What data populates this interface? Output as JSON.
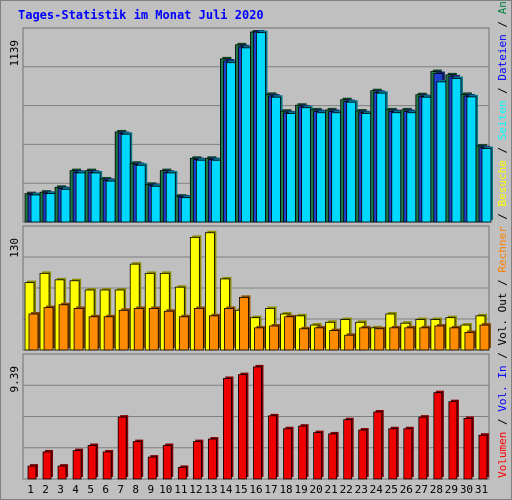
{
  "title": "Tages-Statistik im Monat Juli 2020",
  "right_axis": [
    {
      "text": "Volumen",
      "color": "#ff0000"
    },
    {
      "text": " / ",
      "color": "#000000"
    },
    {
      "text": "Vol. In",
      "color": "#0000ff"
    },
    {
      "text": " / ",
      "color": "#000000"
    },
    {
      "text": "Vol. Out",
      "color": "#000000"
    },
    {
      "text": " / ",
      "color": "#000000"
    },
    {
      "text": "Rechner",
      "color": "#ff8000"
    },
    {
      "text": " / ",
      "color": "#000000"
    },
    {
      "text": "Besuche",
      "color": "#ffff00"
    },
    {
      "text": " / ",
      "color": "#000000"
    },
    {
      "text": "Seiten",
      "color": "#00ffff"
    },
    {
      "text": " / ",
      "color": "#000000"
    },
    {
      "text": "Dateien",
      "color": "#0000ff"
    },
    {
      "text": " / ",
      "color": "#000000"
    },
    {
      "text": "Anfragen",
      "color": "#008040"
    }
  ],
  "colors": {
    "anfragen": "#1f7a4a",
    "dateien": "#1e40d0",
    "seiten": "#00d8ff",
    "besuche": "#ffff00",
    "rechner": "#ff8c00",
    "volumen": "#ee0000",
    "weekend_label": "#2e8b57",
    "weekday_label": "#000000"
  },
  "chart_data": [
    {
      "type": "bar",
      "name": "hits",
      "y_max_label": "1139",
      "ylim": [
        0,
        1139
      ],
      "categories": [
        "1",
        "2",
        "3",
        "4",
        "5",
        "6",
        "7",
        "8",
        "9",
        "10",
        "11",
        "12",
        "13",
        "14",
        "15",
        "16",
        "17",
        "18",
        "19",
        "20",
        "21",
        "22",
        "23",
        "24",
        "25",
        "26",
        "27",
        "28",
        "29",
        "30",
        "31"
      ],
      "series": [
        {
          "name": "Anfragen",
          "values": [
            170,
            179,
            208,
            308,
            308,
            258,
            540,
            352,
            226,
            308,
            155,
            382,
            382,
            978,
            1062,
            1139,
            765,
            664,
            700,
            672,
            672,
            733,
            665,
            787,
            672,
            672,
            763,
            902,
            882,
            765,
            455
          ]
        },
        {
          "name": "Dateien",
          "values": [
            164,
            172,
            200,
            298,
            298,
            250,
            530,
            344,
            218,
            298,
            150,
            374,
            374,
            965,
            1050,
            1139,
            755,
            654,
            690,
            662,
            662,
            722,
            655,
            777,
            662,
            662,
            752,
            890,
            870,
            755,
            445
          ]
        },
        {
          "name": "Seiten",
          "values": [
            162,
            170,
            196,
            294,
            294,
            245,
            526,
            340,
            214,
            294,
            146,
            370,
            370,
            955,
            1044,
            1135,
            748,
            650,
            685,
            655,
            655,
            718,
            650,
            772,
            655,
            655,
            748,
            840,
            860,
            750,
            440
          ]
        }
      ]
    },
    {
      "type": "bar",
      "name": "visits",
      "y_max_label": "130",
      "ylim": [
        0,
        130
      ],
      "categories": [
        "1",
        "2",
        "3",
        "4",
        "5",
        "6",
        "7",
        "8",
        "9",
        "10",
        "11",
        "12",
        "13",
        "14",
        "15",
        "16",
        "17",
        "18",
        "19",
        "20",
        "21",
        "22",
        "23",
        "24",
        "25",
        "26",
        "27",
        "28",
        "29",
        "30",
        "31"
      ],
      "series": [
        {
          "name": "Besuche",
          "values": [
            73,
            83,
            76,
            75,
            65,
            65,
            65,
            93,
            83,
            83,
            68,
            122,
            127,
            77,
            43,
            35,
            45,
            39,
            37,
            27,
            30,
            33,
            30,
            24,
            39,
            29,
            33,
            33,
            35,
            27,
            37
          ]
        },
        {
          "name": "Rechner",
          "values": [
            39,
            46,
            49,
            45,
            36,
            36,
            43,
            45,
            45,
            42,
            36,
            45,
            37,
            45,
            57,
            24,
            26,
            36,
            23,
            24,
            21,
            16,
            24,
            23,
            24,
            24,
            24,
            26,
            24,
            19,
            27
          ]
        }
      ]
    },
    {
      "type": "bar",
      "name": "volume",
      "y_max_label": "9.39",
      "ylim": [
        0,
        9.39
      ],
      "categories": [
        "1",
        "2",
        "3",
        "4",
        "5",
        "6",
        "7",
        "8",
        "9",
        "10",
        "11",
        "12",
        "13",
        "14",
        "15",
        "16",
        "17",
        "18",
        "19",
        "20",
        "21",
        "22",
        "23",
        "24",
        "25",
        "26",
        "27",
        "28",
        "29",
        "30",
        "31"
      ],
      "series": [
        {
          "name": "Volumen",
          "values": [
            1.0,
            2.1,
            1.0,
            2.2,
            2.6,
            2.1,
            4.8,
            2.9,
            1.7,
            2.6,
            0.9,
            2.9,
            3.1,
            7.8,
            8.1,
            8.7,
            4.9,
            3.9,
            4.1,
            3.6,
            3.5,
            4.6,
            3.8,
            5.2,
            3.9,
            3.9,
            4.8,
            6.7,
            6.0,
            4.7,
            3.4
          ]
        }
      ]
    }
  ],
  "x_weekends": [
    "4",
    "5",
    "11",
    "12",
    "18",
    "19",
    "25",
    "26"
  ]
}
